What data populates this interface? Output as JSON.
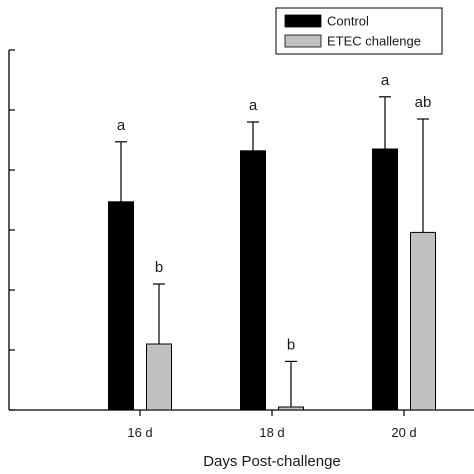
{
  "chart_data": {
    "type": "bar",
    "title": "",
    "xlabel": "Days Post-challenge",
    "ylabel": "",
    "categories": [
      "16 d",
      "18 d",
      "20 d"
    ],
    "ylim": [
      0,
      6
    ],
    "yticks": [
      0,
      1,
      2,
      3,
      4,
      5,
      6
    ],
    "ytick_labels_visible": false,
    "grid": false,
    "legend": {
      "position": "top-right"
    },
    "series": [
      {
        "name": "Control",
        "color": "#000000",
        "values": [
          3.47,
          4.32,
          4.35
        ],
        "error": [
          1.0,
          0.48,
          0.87
        ],
        "labels": [
          "a",
          "a",
          "a"
        ]
      },
      {
        "name": "ETEC challenge",
        "color": "#c0c0c0",
        "values": [
          1.1,
          0.05,
          2.96
        ],
        "error": [
          1.0,
          0.76,
          1.89
        ],
        "labels": [
          "b",
          "b",
          "ab"
        ]
      }
    ]
  }
}
